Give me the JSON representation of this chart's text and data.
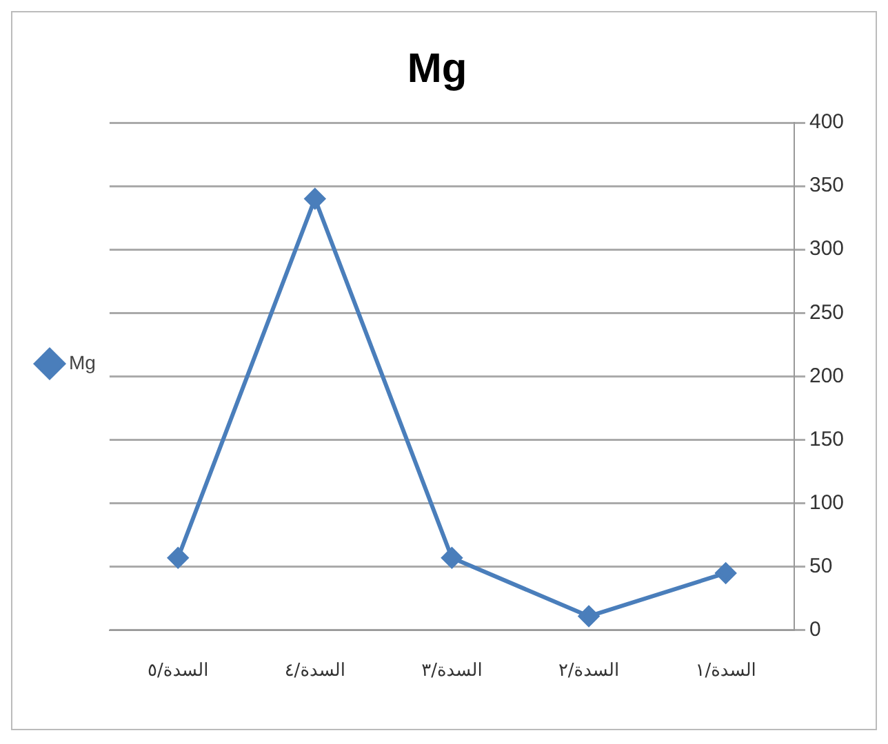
{
  "chart_data": {
    "type": "line",
    "title": "Mg",
    "categories": [
      "السدة/٥",
      "السدة/٤",
      "السدة/٣",
      "السدة/٢",
      "السدة/١"
    ],
    "series": [
      {
        "name": "Mg",
        "color": "#4a7ebb",
        "values": [
          57,
          340,
          57,
          11,
          45
        ]
      }
    ],
    "ylim": [
      0,
      400
    ],
    "yticks": [
      0,
      50,
      100,
      150,
      200,
      250,
      300,
      350,
      400
    ],
    "grid": "y",
    "legend": "left",
    "marker": "diamond",
    "line_style": "solid"
  }
}
